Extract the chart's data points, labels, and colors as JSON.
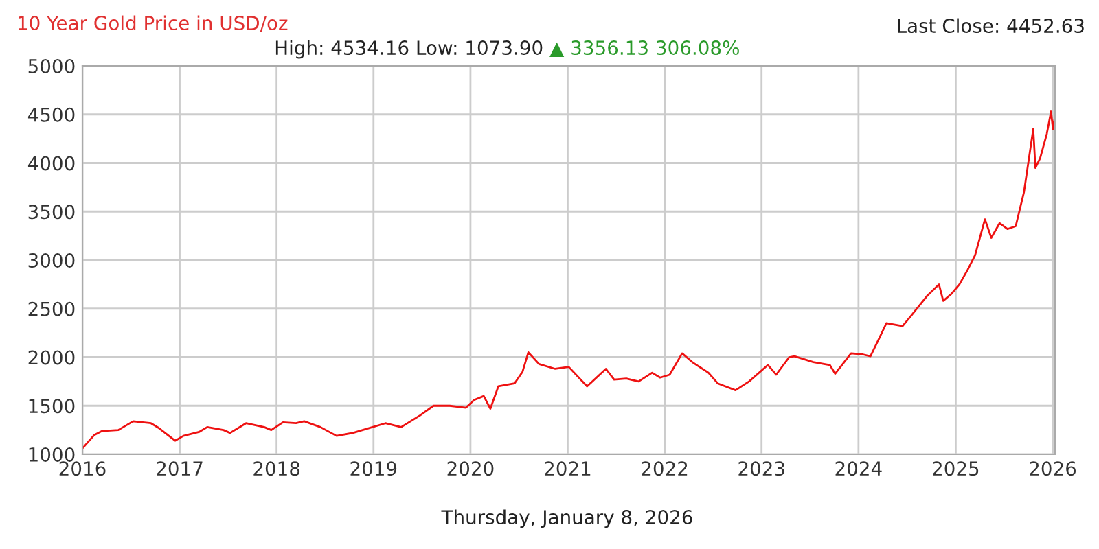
{
  "chart_data": {
    "type": "line",
    "title": "10 Year Gold Price in USD/oz",
    "annotations": [
      "Last Close: 4452.63",
      "High: 4534.16 Low: 1073.90",
      "▲ 3356.13 306.08%",
      "Thursday, January 8, 2026"
    ],
    "x": [
      "2016-01-04",
      "2016-02-15",
      "2016-03-15",
      "2016-05-15",
      "2016-07-10",
      "2016-09-15",
      "2016-10-15",
      "2016-12-15",
      "2017-01-15",
      "2017-03-15",
      "2017-04-15",
      "2017-06-15",
      "2017-07-10",
      "2017-09-08",
      "2017-11-15",
      "2017-12-12",
      "2018-01-25",
      "2018-03-15",
      "2018-04-15",
      "2018-06-15",
      "2018-08-15",
      "2018-10-15",
      "2018-12-15",
      "2019-02-15",
      "2019-04-15",
      "2019-06-25",
      "2019-08-15",
      "2019-10-15",
      "2019-12-15",
      "2020-01-15",
      "2020-02-20",
      "2020-03-16",
      "2020-04-15",
      "2020-06-15",
      "2020-07-15",
      "2020-08-06",
      "2020-09-15",
      "2020-11-15",
      "2021-01-05",
      "2021-03-15",
      "2021-05-25",
      "2021-06-25",
      "2021-08-10",
      "2021-09-25",
      "2021-11-15",
      "2021-12-15",
      "2022-01-20",
      "2022-03-08",
      "2022-04-15",
      "2022-06-15",
      "2022-07-20",
      "2022-09-25",
      "2022-11-15",
      "2023-01-25",
      "2023-02-25",
      "2023-04-15",
      "2023-05-05",
      "2023-07-15",
      "2023-09-15",
      "2023-10-05",
      "2023-12-04",
      "2024-01-15",
      "2024-02-15",
      "2024-03-20",
      "2024-04-15",
      "2024-06-15",
      "2024-07-15",
      "2024-09-15",
      "2024-10-30",
      "2024-11-15",
      "2024-12-15",
      "2025-01-15",
      "2025-02-15",
      "2025-03-15",
      "2025-04-21",
      "2025-05-15",
      "2025-06-15",
      "2025-07-15",
      "2025-08-15",
      "2025-09-15",
      "2025-10-20",
      "2025-10-28",
      "2025-11-15",
      "2025-12-10",
      "2025-12-26",
      "2026-01-02",
      "2026-01-08"
    ],
    "values": [
      1070,
      1200,
      1240,
      1250,
      1340,
      1320,
      1270,
      1140,
      1190,
      1230,
      1280,
      1250,
      1220,
      1320,
      1280,
      1250,
      1330,
      1320,
      1340,
      1280,
      1190,
      1220,
      1270,
      1320,
      1280,
      1400,
      1500,
      1500,
      1480,
      1560,
      1600,
      1470,
      1700,
      1730,
      1850,
      2050,
      1930,
      1880,
      1900,
      1700,
      1880,
      1770,
      1780,
      1750,
      1840,
      1790,
      1820,
      2040,
      1950,
      1840,
      1730,
      1660,
      1750,
      1920,
      1820,
      2000,
      2010,
      1950,
      1920,
      1830,
      2040,
      2030,
      2010,
      2200,
      2350,
      2320,
      2420,
      2630,
      2750,
      2580,
      2650,
      2750,
      2900,
      3050,
      3420,
      3230,
      3380,
      3320,
      3350,
      3700,
      4350,
      3950,
      4050,
      4300,
      4530,
      4350,
      4450
    ],
    "color": "#ee1111",
    "xlim": [
      "2016-01-01",
      "2026-01-10"
    ],
    "xticks": [
      {
        "value": "2016-01-01",
        "label": "2016"
      },
      {
        "value": "2017-01-01",
        "label": "2017"
      },
      {
        "value": "2018-01-01",
        "label": "2018"
      },
      {
        "value": "2019-01-01",
        "label": "2019"
      },
      {
        "value": "2020-01-01",
        "label": "2020"
      },
      {
        "value": "2021-01-01",
        "label": "2021"
      },
      {
        "value": "2022-01-01",
        "label": "2022"
      },
      {
        "value": "2023-01-01",
        "label": "2023"
      },
      {
        "value": "2024-01-01",
        "label": "2024"
      },
      {
        "value": "2025-01-01",
        "label": "2025"
      },
      {
        "value": "2026-01-01",
        "label": "2026"
      }
    ],
    "ylim": [
      1000,
      5000
    ],
    "yticks": [
      1000,
      1500,
      2000,
      2500,
      3000,
      3500,
      4000,
      4500,
      5000
    ],
    "grid": true
  }
}
